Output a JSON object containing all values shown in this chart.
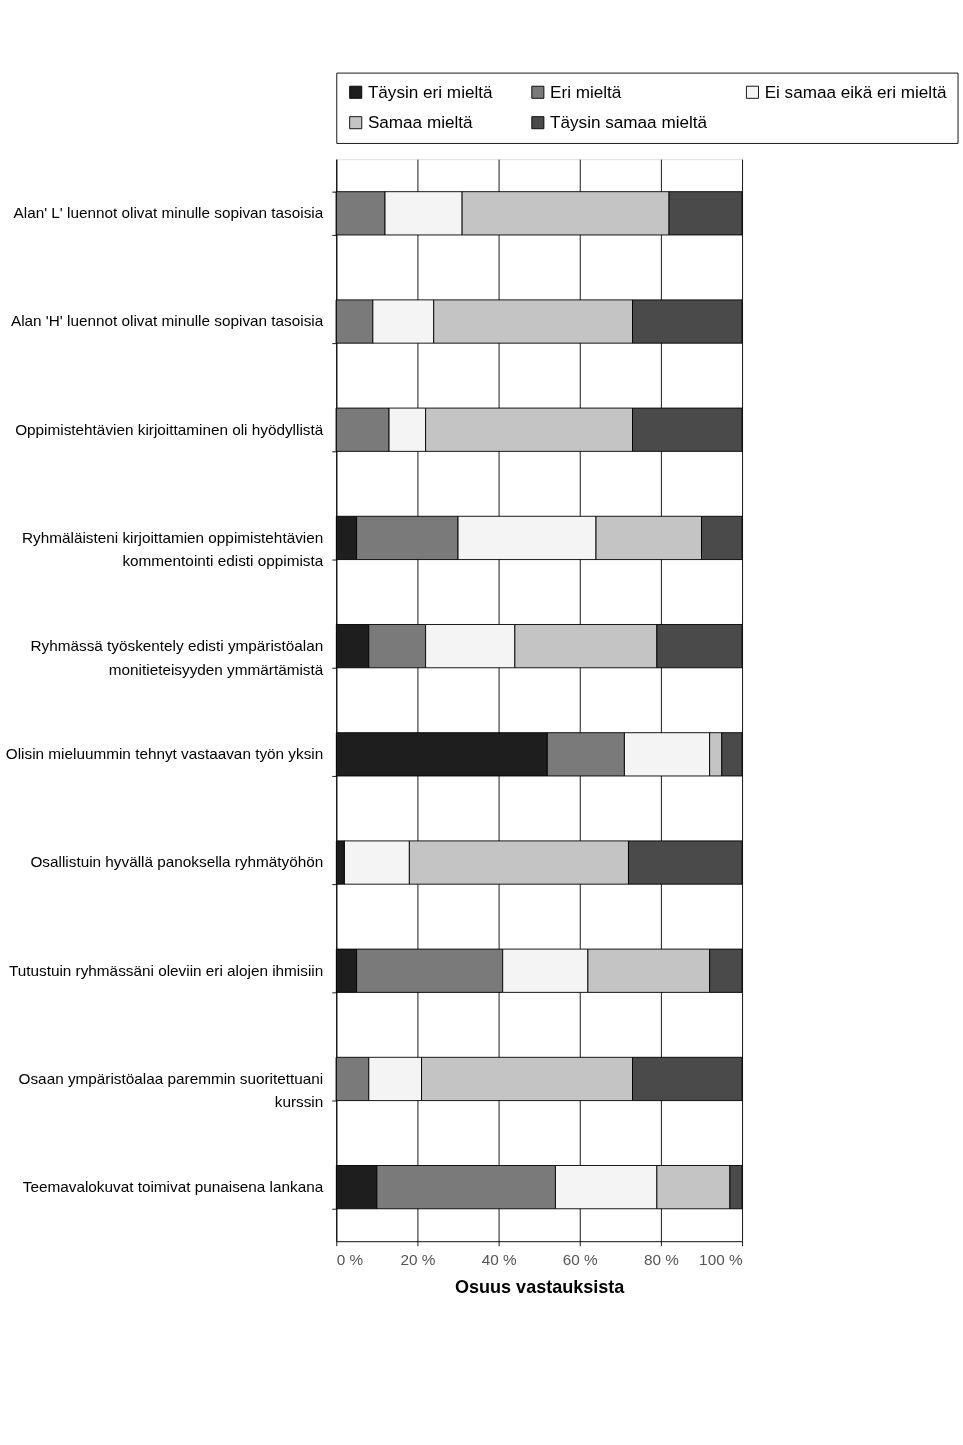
{
  "chart_data": {
    "type": "bar",
    "orientation": "horizontal",
    "stacked": true,
    "xlabel": "Osuus vastauksista",
    "categories": [
      "Alan' L' luennot olivat minulle sopivan tasoisia",
      "Alan 'H' luennot olivat minulle sopivan tasoisia",
      "Oppimistehtävien kirjoittaminen oli hyödyllistä",
      "Ryhmäläisteni kirjoittamien oppimistehtävien\nkommentointi edisti oppimista",
      "Ryhmässä työskentely edisti ympäristöalan\nmonitieteisyyden ymmärtämistä",
      "Olisin mieluummin tehnyt vastaavan työn yksin",
      "Osallistuin hyvällä panoksella ryhmätyöhön",
      "Tutustuin ryhmässäni oleviin eri alojen ihmisiin",
      "Osaan ympäristöalaa paremmin suoritettuani\nkurssin",
      "Teemavalokuvat toimivat punaisena lankana"
    ],
    "series": [
      {
        "name": "Täysin eri mieltä",
        "color": "#1e1e1e",
        "values": [
          0,
          0,
          0,
          5,
          8,
          52,
          2,
          5,
          0,
          10
        ]
      },
      {
        "name": "Eri mieltä",
        "color": "#7a7a7a",
        "values": [
          12,
          9,
          13,
          25,
          14,
          19,
          0,
          36,
          8,
          44
        ]
      },
      {
        "name": "Ei samaa eikä eri mieltä",
        "color": "#f4f4f4",
        "values": [
          19,
          15,
          9,
          34,
          22,
          21,
          16,
          21,
          13,
          25
        ]
      },
      {
        "name": "Samaa mieltä",
        "color": "#c4c4c4",
        "values": [
          51,
          49,
          51,
          26,
          35,
          3,
          54,
          30,
          52,
          18
        ]
      },
      {
        "name": "Täysin samaa mieltä",
        "color": "#4a4a4a",
        "values": [
          18,
          27,
          27,
          10,
          21,
          5,
          28,
          8,
          27,
          3
        ]
      }
    ],
    "xlim": [
      0,
      100
    ],
    "xticks": [
      {
        "value": 0,
        "label": "0 %"
      },
      {
        "value": 20,
        "label": "20 %"
      },
      {
        "value": 40,
        "label": "40 %"
      },
      {
        "value": 60,
        "label": "60 %"
      },
      {
        "value": 80,
        "label": "80 %"
      },
      {
        "value": 100,
        "label": "100 %"
      }
    ],
    "grid": "x",
    "legend": "top"
  }
}
